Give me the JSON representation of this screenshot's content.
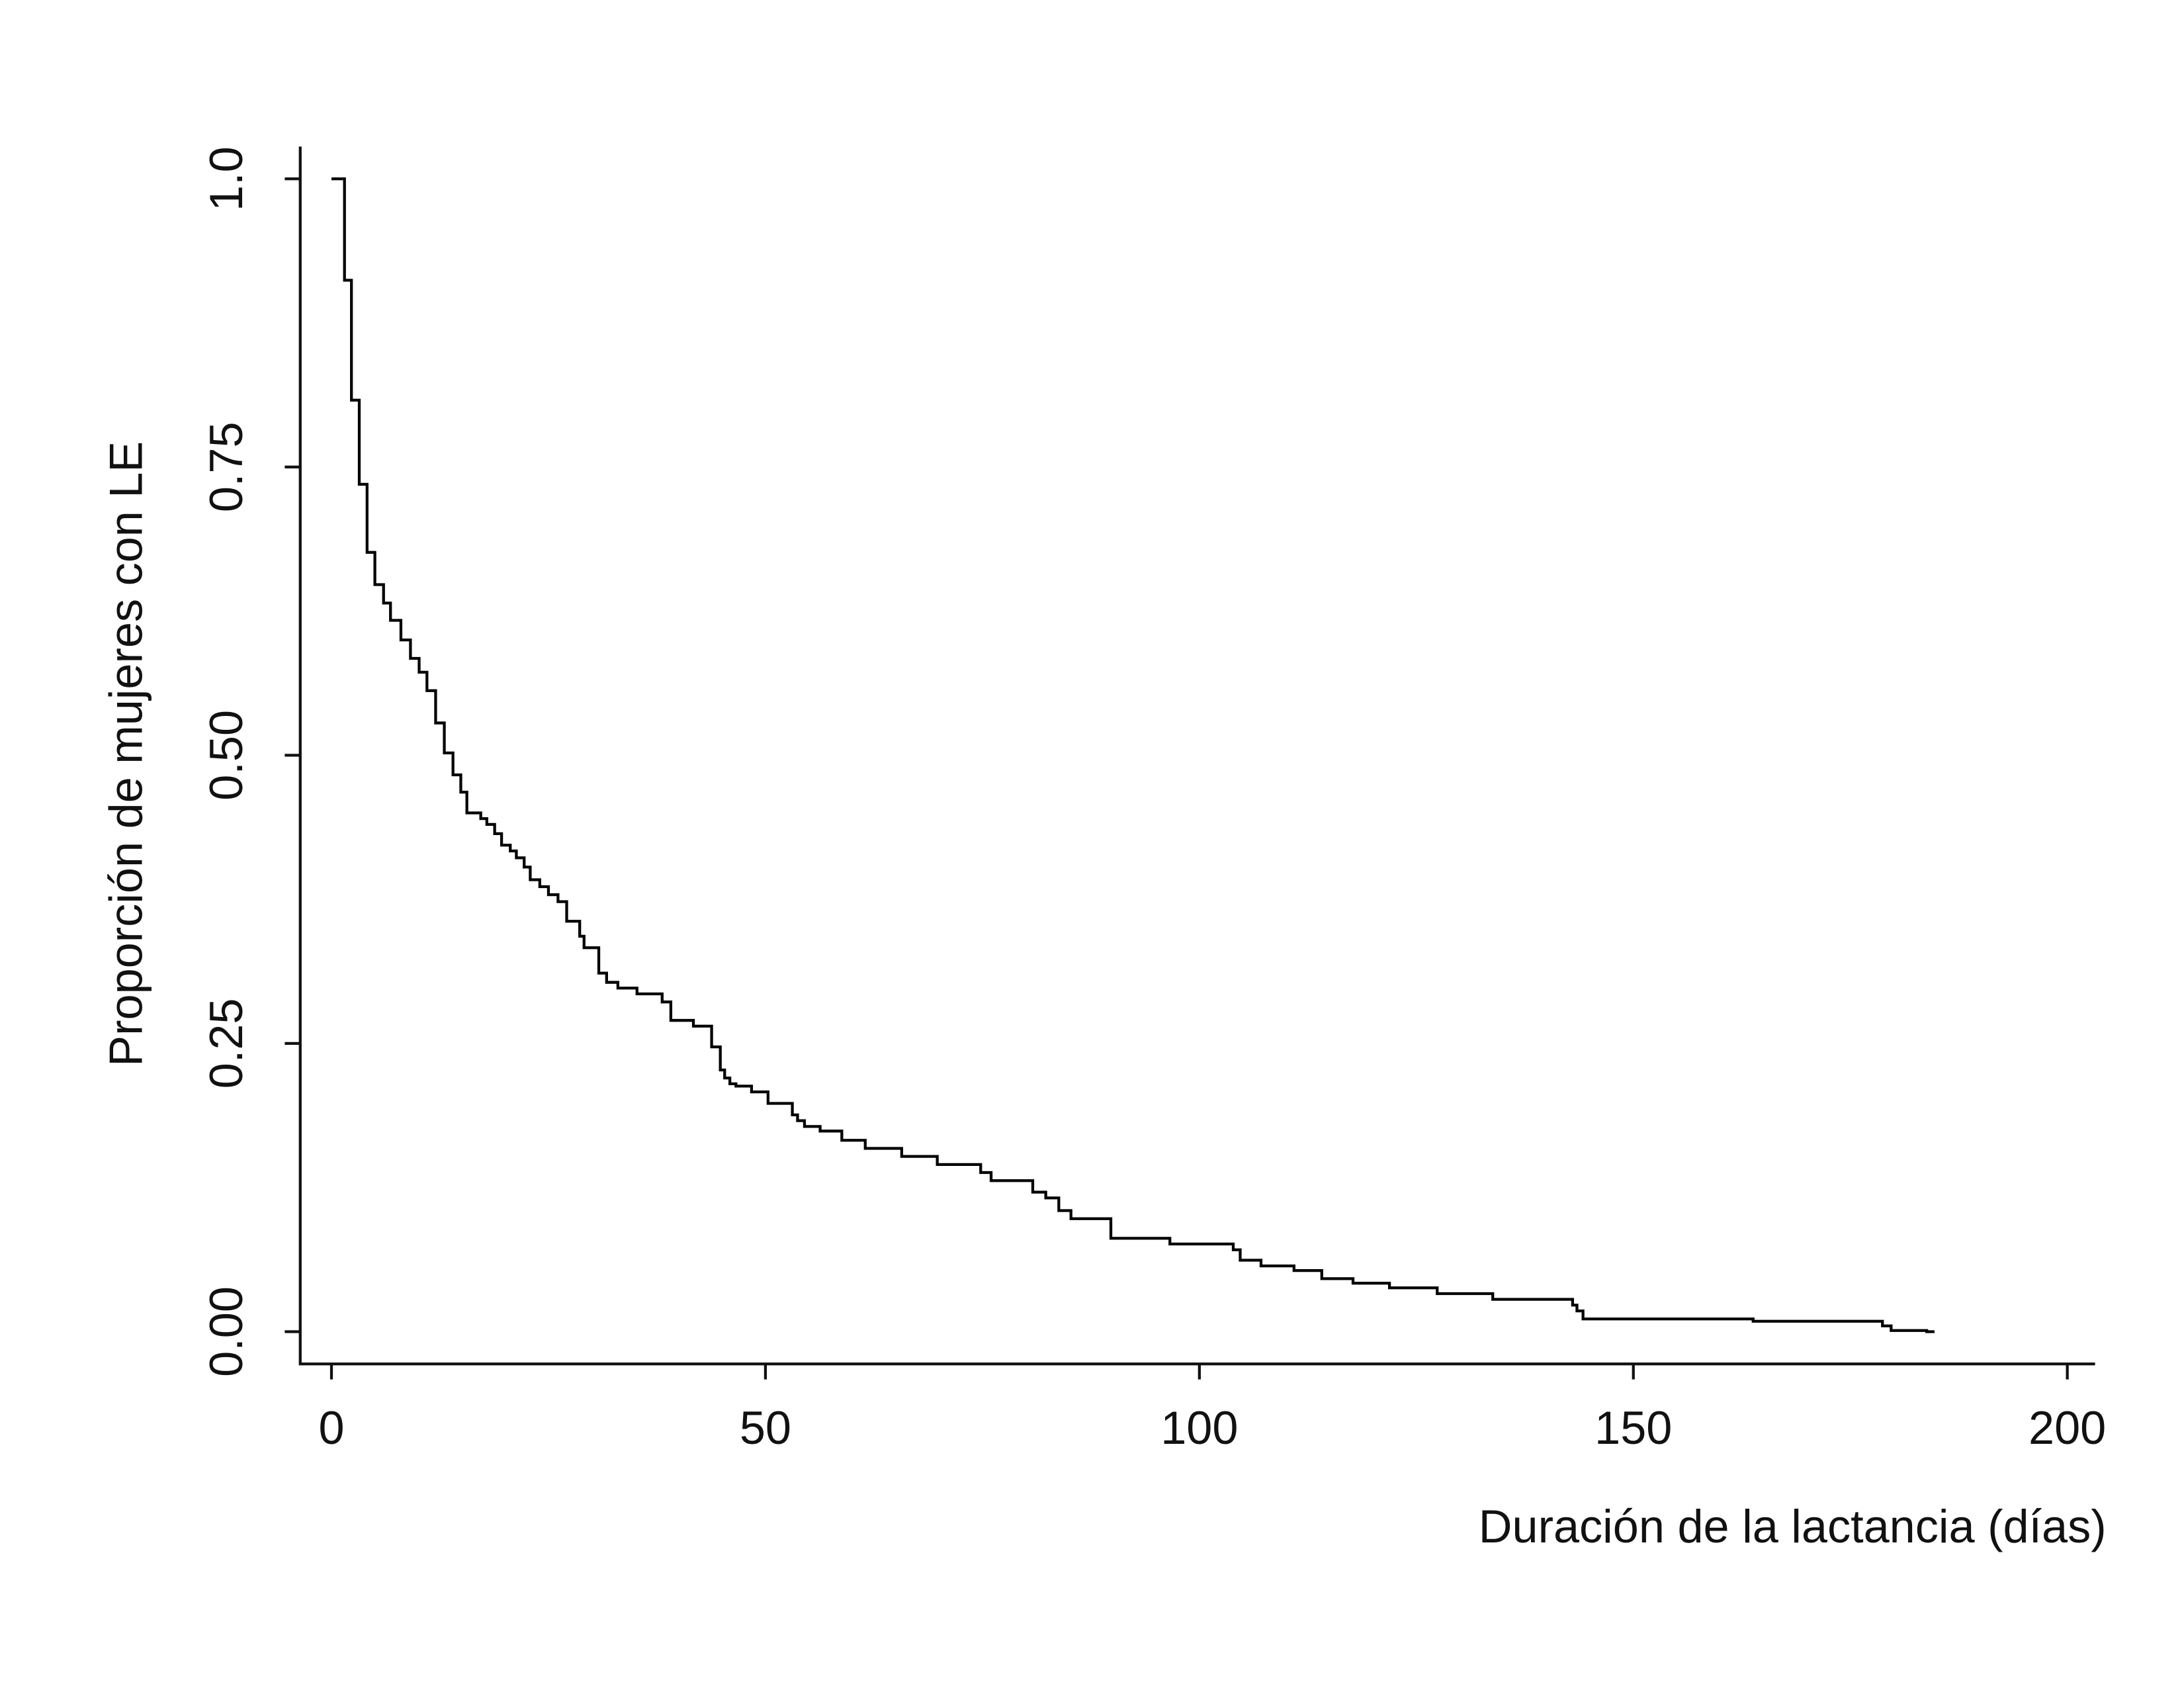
{
  "chart_data": {
    "type": "line",
    "drawstyle": "steps-post",
    "xlabel": "Duración de la lactancia (días)",
    "ylabel": "Proporción de mujeres con LE",
    "color": "#000000",
    "x": [
      0,
      1.5,
      2.3,
      3.2,
      4.1,
      5.0,
      6.0,
      6.8,
      8.0,
      9.1,
      10.1,
      11.0,
      12.0,
      13.0,
      14.0,
      14.9,
      15.6,
      17.2,
      17.9,
      18.8,
      19.6,
      20.6,
      21.3,
      22.2,
      22.9,
      24.0,
      25.0,
      26.1,
      27.1,
      28.6,
      29.1,
      30.8,
      31.7,
      33.0,
      35.2,
      38.1,
      39.1,
      41.7,
      43.8,
      44.8,
      45.3,
      45.9,
      46.6,
      48.4,
      50.3,
      53.1,
      53.7,
      54.5,
      56.3,
      58.8,
      61.5,
      65.7,
      69.8,
      74.8,
      76.0,
      80.8,
      82.3,
      83.8,
      85.2,
      89.8,
      96.6,
      103.9,
      104.7,
      107.1,
      110.9,
      114.1,
      117.7,
      121.9,
      127.4,
      133.8,
      143.0,
      143.5,
      144.2,
      163.8,
      178.7,
      179.7,
      183.8,
      184.7
    ],
    "values": [
      1.0,
      0.912,
      0.808,
      0.735,
      0.676,
      0.648,
      0.632,
      0.617,
      0.6,
      0.584,
      0.572,
      0.556,
      0.528,
      0.502,
      0.483,
      0.468,
      0.45,
      0.445,
      0.44,
      0.432,
      0.422,
      0.417,
      0.411,
      0.403,
      0.392,
      0.386,
      0.379,
      0.373,
      0.356,
      0.343,
      0.333,
      0.311,
      0.303,
      0.298,
      0.293,
      0.286,
      0.27,
      0.265,
      0.247,
      0.227,
      0.22,
      0.215,
      0.213,
      0.208,
      0.198,
      0.188,
      0.183,
      0.178,
      0.174,
      0.166,
      0.159,
      0.152,
      0.145,
      0.138,
      0.131,
      0.121,
      0.116,
      0.105,
      0.098,
      0.081,
      0.076,
      0.071,
      0.062,
      0.057,
      0.053,
      0.046,
      0.042,
      0.038,
      0.033,
      0.028,
      0.023,
      0.018,
      0.011,
      0.009,
      0.005,
      0.001,
      0,
      0
    ],
    "xlim": [
      -3.6,
      203.2
    ],
    "ylim": [
      -0.028,
      1.028
    ],
    "xticks": [
      0,
      50,
      100,
      150,
      200
    ],
    "yticks": [
      {
        "value": 0,
        "label": "0.00"
      },
      0.25,
      {
        "value": 0.5,
        "label": "0.50"
      },
      0.75,
      {
        "value": 1,
        "label": "1.0"
      }
    ]
  }
}
